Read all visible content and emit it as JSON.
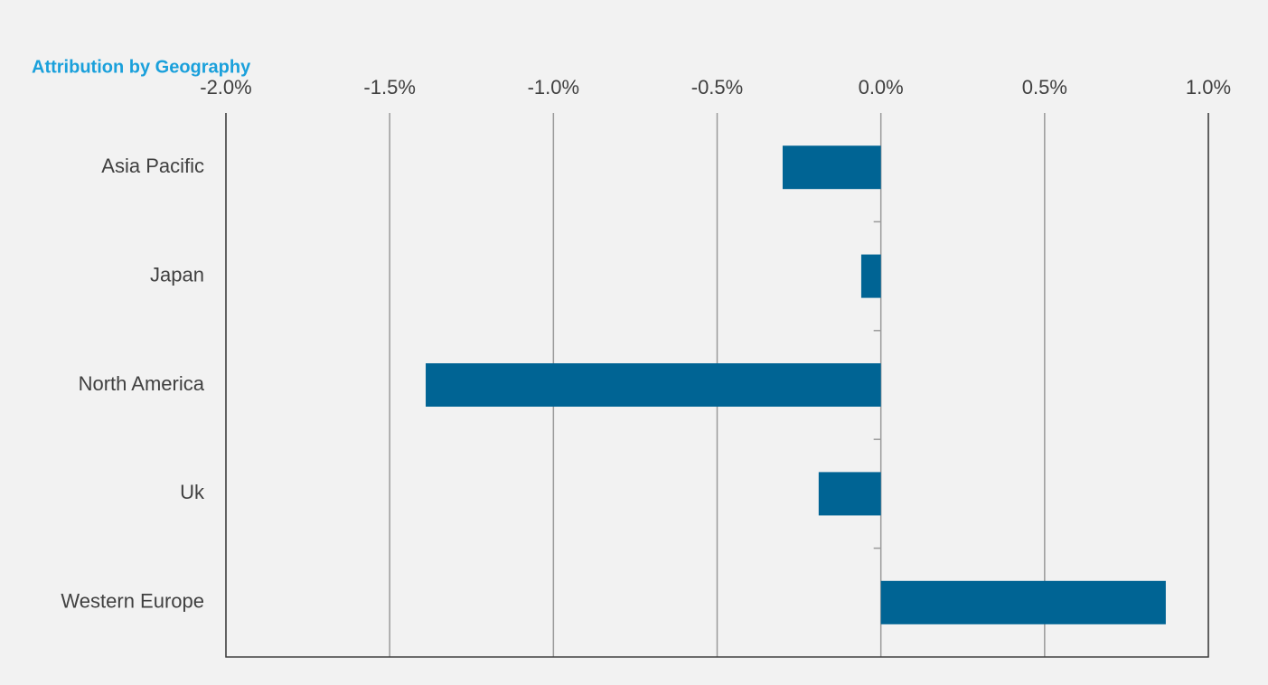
{
  "chart_data": {
    "type": "bar",
    "orientation": "horizontal",
    "title": "Attribution by Geography",
    "categories": [
      "Asia Pacific",
      "Japan",
      "North America",
      "Uk",
      "Western Europe"
    ],
    "values": [
      -0.3,
      -0.06,
      -1.39,
      -0.19,
      0.87
    ],
    "color": "#006494",
    "xlim": [
      -2.0,
      1.0
    ],
    "xticks": [
      {
        "value": -2.0,
        "label": "-2.0%"
      },
      {
        "value": -1.5,
        "label": "-1.5%"
      },
      {
        "value": -1.0,
        "label": "-1.0%"
      },
      {
        "value": -0.5,
        "label": "-0.5%"
      },
      {
        "value": 0,
        "label": "0.0%"
      },
      {
        "value": 0.5,
        "label": "0.5%"
      },
      {
        "value": 1.0,
        "label": "1.0%"
      }
    ],
    "grid": true
  }
}
